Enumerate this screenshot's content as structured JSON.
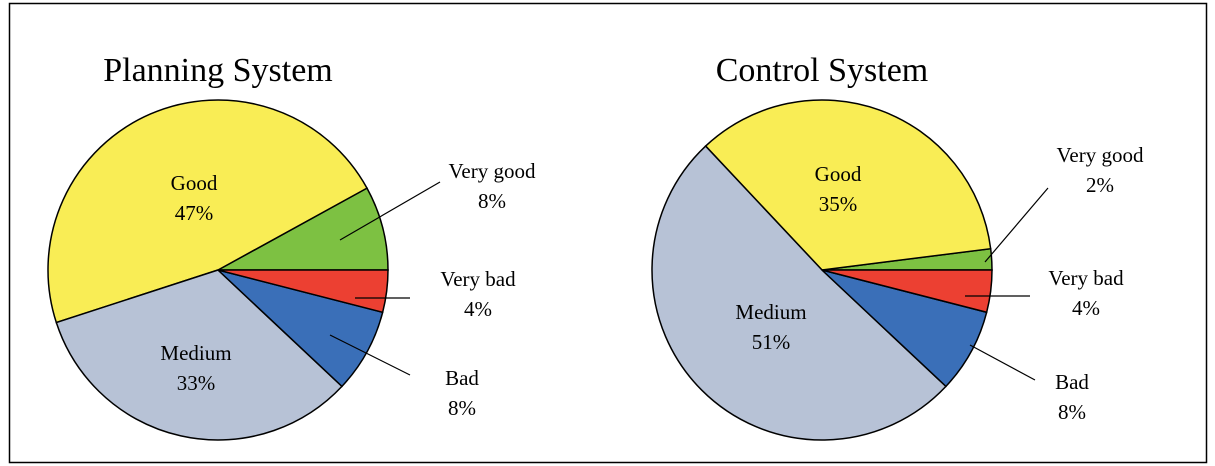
{
  "chart_data": [
    {
      "type": "pie",
      "title": "Planning System",
      "categories": [
        "Very good",
        "Good",
        "Medium",
        "Bad",
        "Very bad"
      ],
      "values": [
        8,
        47,
        33,
        8,
        4
      ],
      "value_labels": [
        "8%",
        "47%",
        "33%",
        "8%",
        "4%"
      ],
      "colors": [
        "#7dc142",
        "#f9ed55",
        "#b7c2d6",
        "#3a6fb8",
        "#ec4032"
      ]
    },
    {
      "type": "pie",
      "title": "Control System",
      "categories": [
        "Very good",
        "Good",
        "Medium",
        "Bad",
        "Very bad"
      ],
      "values": [
        2,
        35,
        51,
        8,
        4
      ],
      "value_labels": [
        "2%",
        "35%",
        "51%",
        "8%",
        "4%"
      ],
      "colors": [
        "#7dc142",
        "#f9ed55",
        "#b7c2d6",
        "#3a6fb8",
        "#ec4032"
      ]
    }
  ]
}
